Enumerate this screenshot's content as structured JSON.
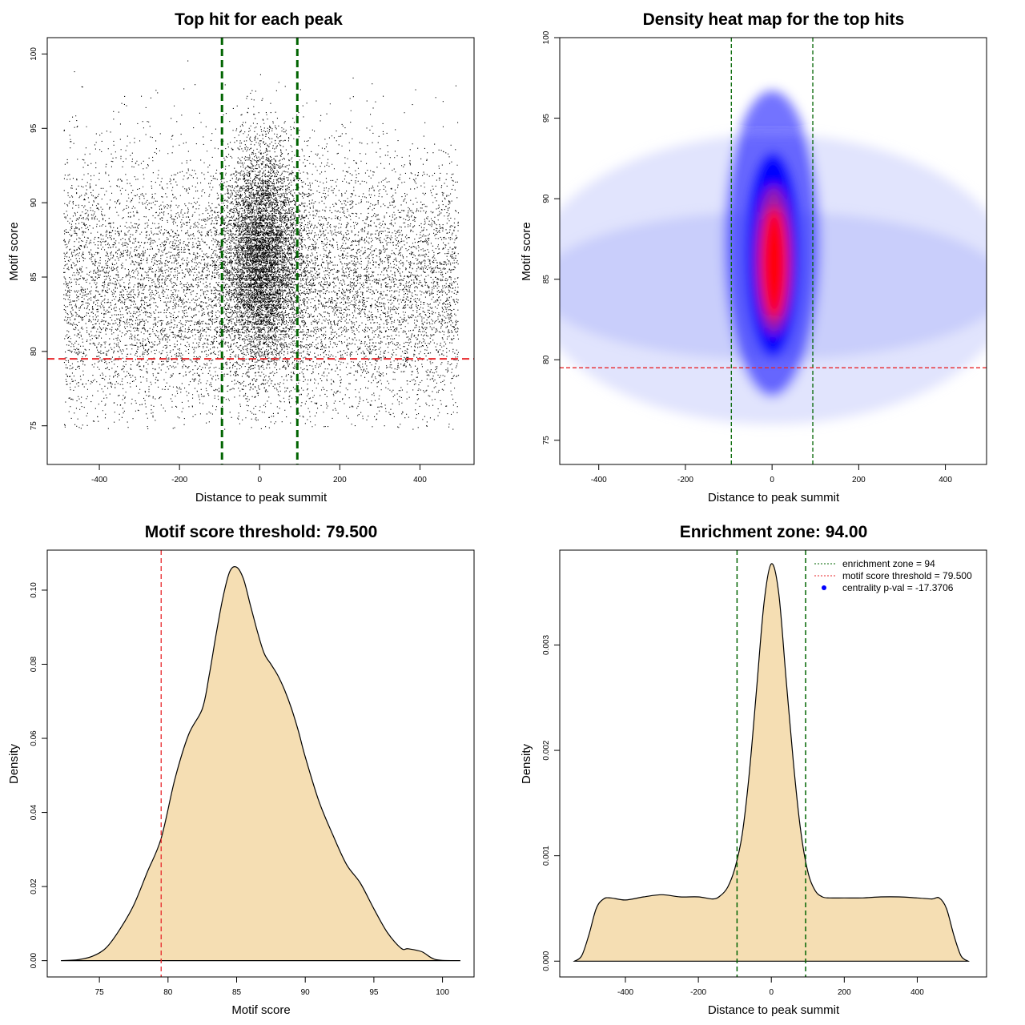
{
  "chart_data": [
    {
      "type": "scatter",
      "title": "Top hit for each peak",
      "xlabel": "Distance to peak summit",
      "ylabel": "Motif score",
      "xlim": [
        -530,
        535
      ],
      "ylim": [
        72.4,
        101.1
      ],
      "x_ticks": [
        -400,
        -200,
        0,
        200,
        400
      ],
      "y_ticks": [
        75,
        80,
        85,
        90,
        95,
        100
      ],
      "grid": false,
      "enrichment_zone": 94,
      "score_threshold": 79.5,
      "vlines": [
        -94,
        94
      ],
      "hline": 79.5,
      "colors": {
        "points": "#000000",
        "vlines": "#006400",
        "hline": "#e8262a"
      },
      "point_cloud": {
        "background": {
          "x_range": [
            -490,
            495
          ],
          "y_center": 84.3,
          "y_sd": 4.4,
          "count": 10500
        },
        "central": {
          "x_center": 5,
          "x_sd": 46,
          "y_center": 86.5,
          "y_sd": 3.6,
          "count": 6500
        }
      }
    },
    {
      "type": "heatmap",
      "title": "Density heat map for the top hits",
      "xlabel": "Distance to peak summit",
      "ylabel": "Motif score",
      "xlim": [
        -490,
        495
      ],
      "ylim": [
        73.5,
        100
      ],
      "x_ticks": [
        -400,
        -200,
        0,
        200,
        400
      ],
      "y_ticks": [
        75,
        80,
        85,
        90,
        95,
        100
      ],
      "vlines": [
        -94,
        94
      ],
      "hline": 79.5,
      "colors": {
        "low": "#ffffff",
        "mid": "#0000ff",
        "high": "#ff0000",
        "vlines": "#006400",
        "hline": "#e8262a"
      }
    },
    {
      "type": "area",
      "title": "Motif score threshold: 79.500",
      "xlabel": "Motif score",
      "ylabel": "Density",
      "xlim": [
        71.2,
        102.3
      ],
      "ylim": [
        -0.0044,
        0.1108
      ],
      "x_ticks": [
        75,
        80,
        85,
        90,
        95,
        100
      ],
      "y_ticks": [
        "0.00",
        "0.02",
        "0.04",
        "0.06",
        "0.08",
        "0.10"
      ],
      "y_tick_values": [
        0,
        0.02,
        0.04,
        0.06,
        0.08,
        0.1
      ],
      "vline": 79.5,
      "x": [
        72.2,
        73.5,
        74.5,
        75.5,
        76.5,
        77.5,
        78.5,
        79.5,
        80.5,
        81.5,
        82.5,
        83,
        83.5,
        84,
        84.5,
        85,
        85.5,
        86,
        86.5,
        87,
        87.5,
        88,
        88.5,
        89,
        89.5,
        90,
        91,
        92,
        93,
        94,
        95,
        96,
        97,
        97.5,
        98.5,
        99.5,
        101.3
      ],
      "y": [
        0,
        0.0003,
        0.0012,
        0.0035,
        0.0085,
        0.015,
        0.024,
        0.033,
        0.049,
        0.061,
        0.068,
        0.077,
        0.088,
        0.098,
        0.105,
        0.1062,
        0.103,
        0.096,
        0.089,
        0.083,
        0.08,
        0.077,
        0.073,
        0.068,
        0.062,
        0.055,
        0.043,
        0.034,
        0.026,
        0.021,
        0.014,
        0.0075,
        0.0033,
        0.0032,
        0.0024,
        0.0003,
        0
      ],
      "colors": {
        "fill": "#f5deb3",
        "line": "#000000",
        "vline": "#e8262a"
      }
    },
    {
      "type": "area",
      "title": "Enrichment zone: 94.00",
      "xlabel": "Distance to peak summit",
      "ylabel": "Density",
      "xlim": [
        -580,
        590
      ],
      "ylim": [
        -0.00015,
        0.0039
      ],
      "x_ticks": [
        -400,
        -200,
        0,
        200,
        400
      ],
      "y_ticks": [
        "0.000",
        "0.001",
        "0.002",
        "0.003"
      ],
      "y_tick_values": [
        0,
        0.001,
        0.002,
        0.003
      ],
      "vlines": [
        -94,
        94
      ],
      "x": [
        -540,
        -520,
        -500,
        -480,
        -460,
        -440,
        -400,
        -350,
        -300,
        -250,
        -200,
        -160,
        -140,
        -120,
        -100,
        -80,
        -60,
        -40,
        -20,
        0,
        20,
        40,
        60,
        80,
        100,
        120,
        140,
        160,
        200,
        250,
        300,
        350,
        400,
        440,
        460,
        480,
        500,
        520,
        540
      ],
      "y": [
        0,
        5e-05,
        0.00025,
        0.0005,
        0.00059,
        0.0006,
        0.00058,
        0.00061,
        0.00063,
        0.00061,
        0.00061,
        0.00059,
        0.00062,
        0.0007,
        0.00088,
        0.0012,
        0.0018,
        0.0026,
        0.0034,
        0.00377,
        0.0035,
        0.0027,
        0.0019,
        0.00125,
        0.00085,
        0.00067,
        0.00061,
        0.0006,
        0.0006,
        0.0006,
        0.00061,
        0.00061,
        0.0006,
        0.00059,
        0.0006,
        0.0005,
        0.00025,
        5e-05,
        0
      ],
      "legend": {
        "position": "top-right",
        "items": [
          {
            "label": "enrichment zone = 94",
            "color": "#006400",
            "style": "dotted-line"
          },
          {
            "label": "motif score threshold = 79.500",
            "color": "#e8262a",
            "style": "dotted-line"
          },
          {
            "label": "centrality p-val = -17.3706",
            "color": "#0000ff",
            "style": "point"
          }
        ]
      },
      "colors": {
        "fill": "#f5deb3",
        "line": "#000000",
        "vlines": "#006400"
      }
    }
  ]
}
